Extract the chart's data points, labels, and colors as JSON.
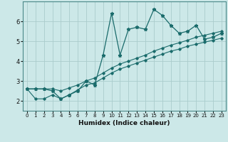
{
  "xlabel": "Humidex (Indice chaleur)",
  "background_color": "#cce8e8",
  "grid_color": "#aacccc",
  "line_color": "#1a6b6b",
  "xlim": [
    -0.5,
    23.5
  ],
  "ylim": [
    1.5,
    7.0
  ],
  "yticks": [
    2,
    3,
    4,
    5,
    6
  ],
  "xticks": [
    0,
    1,
    2,
    3,
    4,
    5,
    6,
    7,
    8,
    9,
    10,
    11,
    12,
    13,
    14,
    15,
    16,
    17,
    18,
    19,
    20,
    21,
    22,
    23
  ],
  "x": [
    0,
    1,
    2,
    3,
    4,
    5,
    6,
    7,
    8,
    9,
    10,
    11,
    12,
    13,
    14,
    15,
    16,
    17,
    18,
    19,
    20,
    21,
    22,
    23
  ],
  "y_main": [
    2.6,
    2.6,
    2.6,
    2.5,
    2.1,
    2.3,
    2.5,
    3.0,
    2.8,
    4.3,
    6.4,
    4.3,
    5.6,
    5.7,
    5.6,
    6.6,
    6.3,
    5.8,
    5.4,
    5.5,
    5.8,
    5.1,
    5.2,
    5.4
  ],
  "y_low": [
    2.6,
    2.1,
    2.1,
    2.3,
    2.1,
    2.3,
    2.55,
    2.8,
    2.9,
    3.15,
    3.4,
    3.6,
    3.75,
    3.9,
    4.05,
    4.2,
    4.35,
    4.5,
    4.6,
    4.75,
    4.85,
    4.95,
    5.05,
    5.15
  ],
  "y_high": [
    2.6,
    2.6,
    2.6,
    2.6,
    2.5,
    2.65,
    2.8,
    3.0,
    3.15,
    3.4,
    3.65,
    3.85,
    4.0,
    4.15,
    4.3,
    4.5,
    4.65,
    4.8,
    4.92,
    5.05,
    5.2,
    5.3,
    5.4,
    5.5
  ]
}
